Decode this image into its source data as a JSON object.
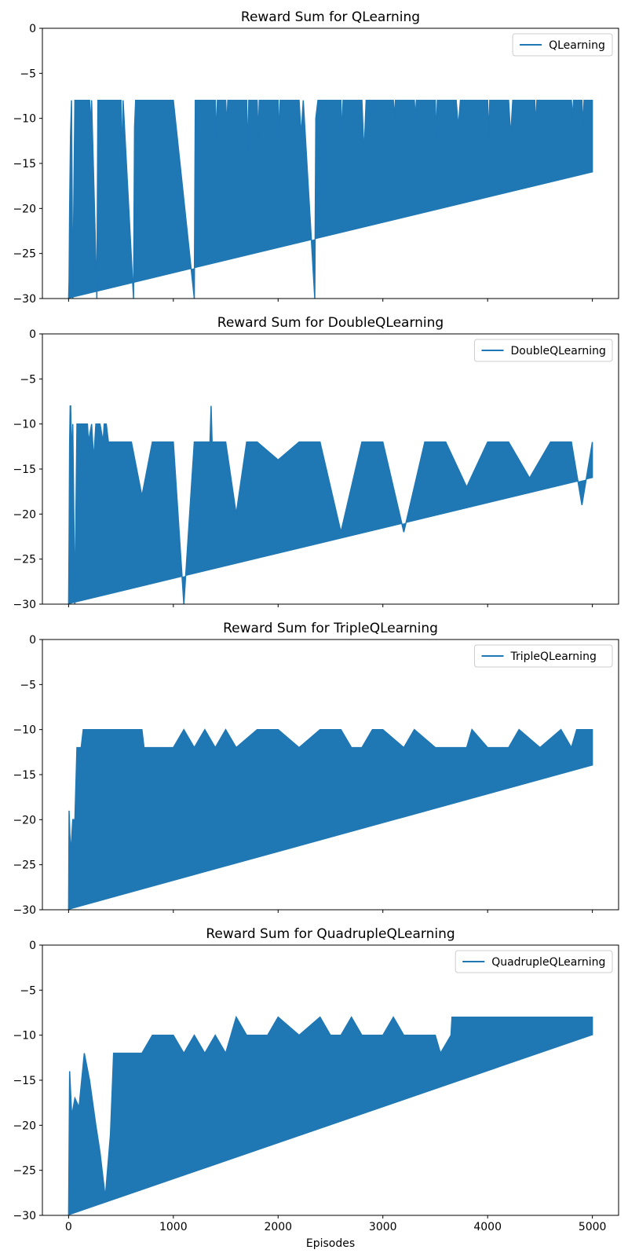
{
  "chart_data": [
    {
      "type": "line",
      "title": "Reward Sum for QLearning",
      "xlabel": "",
      "ylabel": "",
      "xlim": [
        -250,
        5250
      ],
      "ylim": [
        -30,
        0
      ],
      "xticks": [
        0,
        1000,
        2000,
        3000,
        4000,
        5000
      ],
      "show_xtick_labels": false,
      "yticks": [
        0,
        -5,
        -10,
        -15,
        -20,
        -25,
        -30
      ],
      "legend_position": "top-right",
      "series": [
        {
          "name": "QLearning",
          "color": "#1f77b4",
          "points": [
            [
              0,
              -30
            ],
            [
              5,
              -28
            ],
            [
              10,
              -20
            ],
            [
              18,
              -12
            ],
            [
              28,
              -8
            ],
            [
              40,
              -30
            ],
            [
              60,
              -8
            ],
            [
              200,
              -8
            ],
            [
              210,
              -11
            ],
            [
              220,
              -8
            ],
            [
              270,
              -30
            ],
            [
              280,
              -8
            ],
            [
              500,
              -8
            ],
            [
              510,
              -15
            ],
            [
              520,
              -8
            ],
            [
              620,
              -30
            ],
            [
              630,
              -11
            ],
            [
              640,
              -8
            ],
            [
              1000,
              -8
            ],
            [
              1200,
              -30
            ],
            [
              1210,
              -8
            ],
            [
              1400,
              -8
            ],
            [
              1410,
              -12
            ],
            [
              1420,
              -8
            ],
            [
              1500,
              -8
            ],
            [
              1510,
              -11
            ],
            [
              1520,
              -8
            ],
            [
              1700,
              -8
            ],
            [
              1710,
              -14
            ],
            [
              1720,
              -8
            ],
            [
              1800,
              -8
            ],
            [
              1810,
              -12
            ],
            [
              1820,
              -8
            ],
            [
              2000,
              -8
            ],
            [
              2010,
              -12
            ],
            [
              2020,
              -8
            ],
            [
              2200,
              -8
            ],
            [
              2220,
              -12
            ],
            [
              2240,
              -8
            ],
            [
              2350,
              -30
            ],
            [
              2360,
              -10
            ],
            [
              2380,
              -8
            ],
            [
              2600,
              -8
            ],
            [
              2610,
              -12
            ],
            [
              2620,
              -8
            ],
            [
              2800,
              -8
            ],
            [
              2820,
              -14
            ],
            [
              2840,
              -8
            ],
            [
              3100,
              -8
            ],
            [
              3110,
              -10
            ],
            [
              3120,
              -8
            ],
            [
              3300,
              -8
            ],
            [
              3310,
              -10
            ],
            [
              3320,
              -8
            ],
            [
              3500,
              -8
            ],
            [
              3510,
              -12
            ],
            [
              3520,
              -8
            ],
            [
              3700,
              -8
            ],
            [
              3720,
              -11
            ],
            [
              3740,
              -8
            ],
            [
              4000,
              -8
            ],
            [
              4010,
              -12
            ],
            [
              4020,
              -8
            ],
            [
              4200,
              -8
            ],
            [
              4220,
              -12
            ],
            [
              4240,
              -8
            ],
            [
              4450,
              -8
            ],
            [
              4460,
              -11
            ],
            [
              4470,
              -8
            ],
            [
              4800,
              -8
            ],
            [
              4810,
              -10
            ],
            [
              4820,
              -8
            ],
            [
              4900,
              -8
            ],
            [
              4910,
              -11
            ],
            [
              4920,
              -8
            ],
            [
              5000,
              -8
            ],
            [
              5000,
              -16
            ]
          ]
        }
      ]
    },
    {
      "type": "line",
      "title": "Reward Sum for DoubleQLearning",
      "xlabel": "",
      "ylabel": "",
      "xlim": [
        -250,
        5250
      ],
      "ylim": [
        -30,
        0
      ],
      "xticks": [
        0,
        1000,
        2000,
        3000,
        4000,
        5000
      ],
      "show_xtick_labels": false,
      "yticks": [
        0,
        -5,
        -10,
        -15,
        -20,
        -25,
        -30
      ],
      "legend_position": "top-right",
      "series": [
        {
          "name": "DoubleQLearning",
          "color": "#1f77b4",
          "points": [
            [
              0,
              -30
            ],
            [
              5,
              -23
            ],
            [
              10,
              -12
            ],
            [
              15,
              -8
            ],
            [
              20,
              -8
            ],
            [
              30,
              -14
            ],
            [
              40,
              -10
            ],
            [
              60,
              -30
            ],
            [
              80,
              -10
            ],
            [
              180,
              -10
            ],
            [
              190,
              -12
            ],
            [
              220,
              -10
            ],
            [
              240,
              -14
            ],
            [
              260,
              -10
            ],
            [
              300,
              -10
            ],
            [
              330,
              -12
            ],
            [
              340,
              -10
            ],
            [
              360,
              -10
            ],
            [
              380,
              -12
            ],
            [
              600,
              -12
            ],
            [
              700,
              -18
            ],
            [
              800,
              -12
            ],
            [
              1000,
              -12
            ],
            [
              1100,
              -30
            ],
            [
              1200,
              -12
            ],
            [
              1350,
              -12
            ],
            [
              1360,
              -8
            ],
            [
              1370,
              -12
            ],
            [
              1500,
              -12
            ],
            [
              1600,
              -20
            ],
            [
              1700,
              -12
            ],
            [
              1800,
              -12
            ],
            [
              2000,
              -14
            ],
            [
              2200,
              -12
            ],
            [
              2400,
              -12
            ],
            [
              2600,
              -22
            ],
            [
              2800,
              -12
            ],
            [
              3000,
              -12
            ],
            [
              3200,
              -22
            ],
            [
              3400,
              -12
            ],
            [
              3600,
              -12
            ],
            [
              3800,
              -17
            ],
            [
              4000,
              -12
            ],
            [
              4200,
              -12
            ],
            [
              4400,
              -16
            ],
            [
              4600,
              -12
            ],
            [
              4800,
              -12
            ],
            [
              4900,
              -19
            ],
            [
              5000,
              -12
            ],
            [
              5000,
              -16
            ]
          ]
        }
      ]
    },
    {
      "type": "line",
      "title": "Reward Sum for TripleQLearning",
      "xlabel": "",
      "ylabel": "",
      "xlim": [
        -250,
        5250
      ],
      "ylim": [
        -30,
        0
      ],
      "xticks": [
        0,
        1000,
        2000,
        3000,
        4000,
        5000
      ],
      "show_xtick_labels": false,
      "yticks": [
        0,
        -5,
        -10,
        -15,
        -20,
        -25,
        -30
      ],
      "legend_position": "top-right",
      "series": [
        {
          "name": "TripleQLearning",
          "color": "#1f77b4",
          "points": [
            [
              0,
              -30
            ],
            [
              5,
              -19
            ],
            [
              20,
              -24
            ],
            [
              40,
              -20
            ],
            [
              60,
              -20
            ],
            [
              80,
              -12
            ],
            [
              120,
              -12
            ],
            [
              140,
              -10
            ],
            [
              700,
              -10
            ],
            [
              720,
              -12
            ],
            [
              1000,
              -12
            ],
            [
              1100,
              -10
            ],
            [
              1200,
              -12
            ],
            [
              1300,
              -10
            ],
            [
              1400,
              -12
            ],
            [
              1500,
              -10
            ],
            [
              1600,
              -12
            ],
            [
              1800,
              -10
            ],
            [
              2000,
              -10
            ],
            [
              2200,
              -12
            ],
            [
              2400,
              -10
            ],
            [
              2600,
              -10
            ],
            [
              2700,
              -12
            ],
            [
              2800,
              -12
            ],
            [
              2900,
              -10
            ],
            [
              3000,
              -10
            ],
            [
              3200,
              -12
            ],
            [
              3300,
              -10
            ],
            [
              3500,
              -12
            ],
            [
              3800,
              -12
            ],
            [
              3850,
              -10
            ],
            [
              4000,
              -12
            ],
            [
              4200,
              -12
            ],
            [
              4300,
              -10
            ],
            [
              4500,
              -12
            ],
            [
              4700,
              -10
            ],
            [
              4800,
              -12
            ],
            [
              4850,
              -10
            ],
            [
              5000,
              -10
            ],
            [
              5000,
              -14
            ]
          ]
        }
      ]
    },
    {
      "type": "line",
      "title": "Reward Sum for QuadrupleQLearning",
      "xlabel": "Episodes",
      "ylabel": "",
      "xlim": [
        -250,
        5250
      ],
      "ylim": [
        -30,
        0
      ],
      "xticks": [
        0,
        1000,
        2000,
        3000,
        4000,
        5000
      ],
      "show_xtick_labels": true,
      "yticks": [
        0,
        -5,
        -10,
        -15,
        -20,
        -25,
        -30
      ],
      "legend_position": "top-right",
      "series": [
        {
          "name": "QuadrupleQLearning",
          "color": "#1f77b4",
          "points": [
            [
              0,
              -30
            ],
            [
              10,
              -14
            ],
            [
              30,
              -19
            ],
            [
              60,
              -17
            ],
            [
              100,
              -18
            ],
            [
              150,
              -12
            ],
            [
              200,
              -15
            ],
            [
              260,
              -20
            ],
            [
              300,
              -23
            ],
            [
              350,
              -28
            ],
            [
              400,
              -21
            ],
            [
              420,
              -15
            ],
            [
              430,
              -12
            ],
            [
              700,
              -12
            ],
            [
              800,
              -10
            ],
            [
              1000,
              -10
            ],
            [
              1100,
              -12
            ],
            [
              1200,
              -10
            ],
            [
              1300,
              -12
            ],
            [
              1400,
              -10
            ],
            [
              1500,
              -12
            ],
            [
              1550,
              -10
            ],
            [
              1600,
              -8
            ],
            [
              1700,
              -10
            ],
            [
              1800,
              -10
            ],
            [
              1900,
              -10
            ],
            [
              2000,
              -8
            ],
            [
              2200,
              -10
            ],
            [
              2400,
              -8
            ],
            [
              2500,
              -10
            ],
            [
              2600,
              -10
            ],
            [
              2700,
              -8
            ],
            [
              2800,
              -10
            ],
            [
              3000,
              -10
            ],
            [
              3100,
              -8
            ],
            [
              3200,
              -10
            ],
            [
              3400,
              -10
            ],
            [
              3500,
              -10
            ],
            [
              3550,
              -12
            ],
            [
              3650,
              -10
            ],
            [
              3660,
              -8
            ],
            [
              4000,
              -8
            ],
            [
              4500,
              -8
            ],
            [
              5000,
              -8
            ],
            [
              5000,
              -10
            ]
          ]
        }
      ]
    }
  ]
}
